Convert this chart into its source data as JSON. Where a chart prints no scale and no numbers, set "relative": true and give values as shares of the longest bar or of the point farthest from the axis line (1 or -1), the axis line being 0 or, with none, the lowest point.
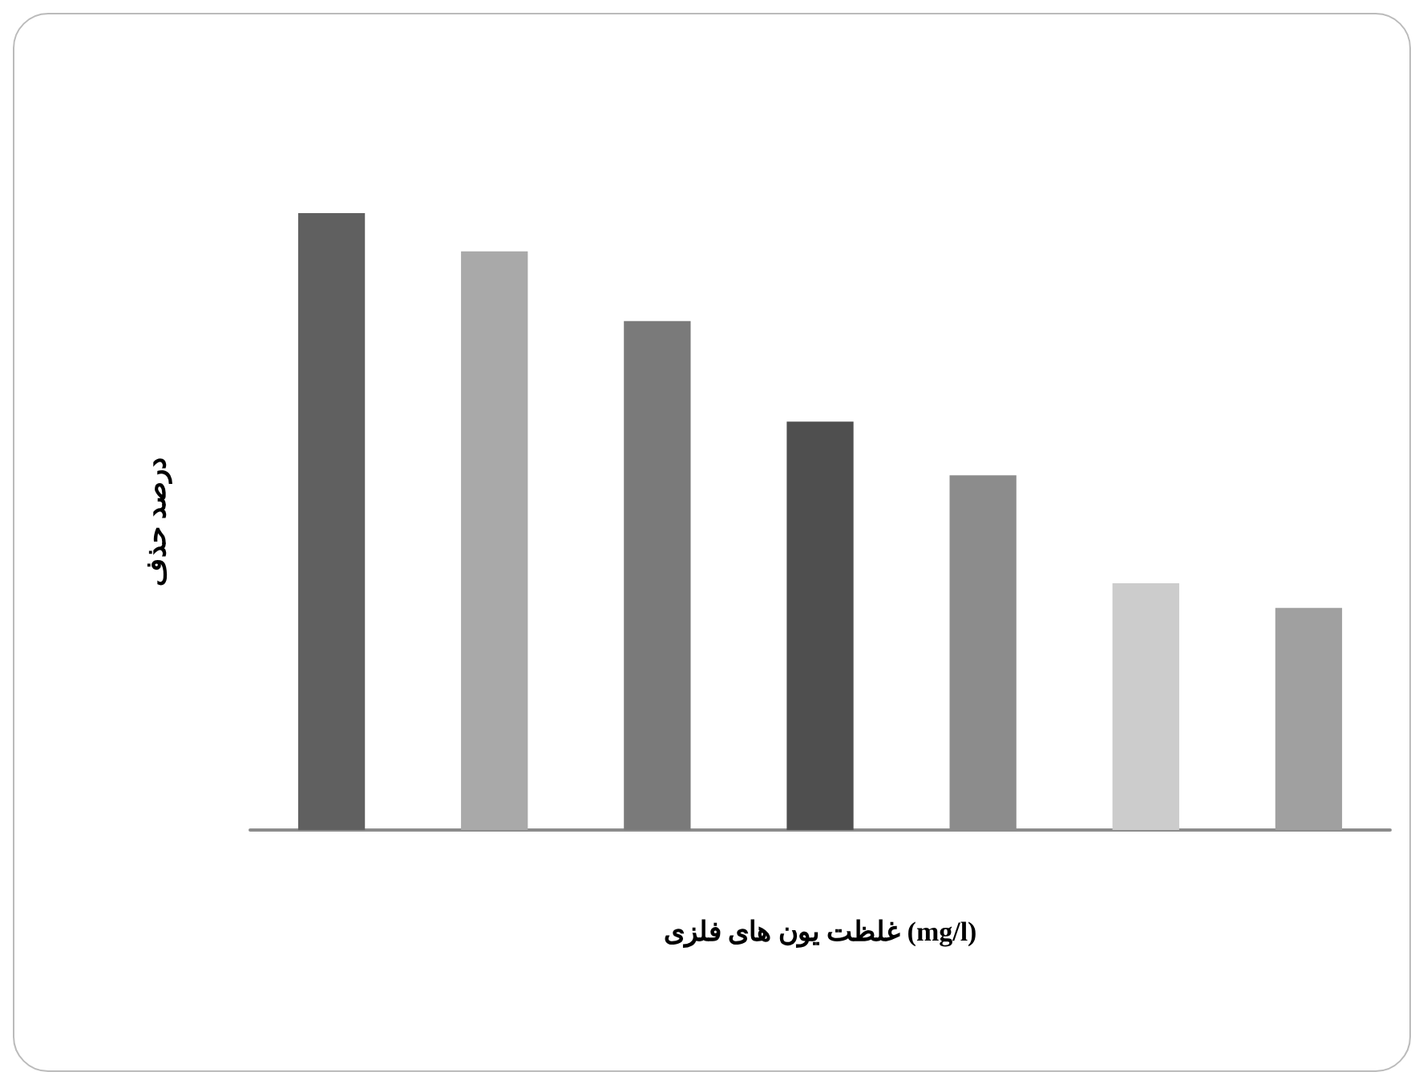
{
  "chart_data": {
    "type": "bar",
    "relative": true,
    "ylabel": "درصد حذف",
    "xlabel": "غلظت یون های فلزی (mg/l)",
    "categories": [
      null,
      null,
      null,
      null,
      null,
      null,
      null
    ],
    "values": [
      1,
      0.938,
      0.825,
      0.662,
      0.575,
      0.4,
      0.36
    ],
    "colors": [
      "#606060",
      "#a9a9a9",
      "#7a7a7a",
      "#4f4f4f",
      "#8c8c8c",
      "#cccccc",
      "#a0a0a0"
    ]
  }
}
